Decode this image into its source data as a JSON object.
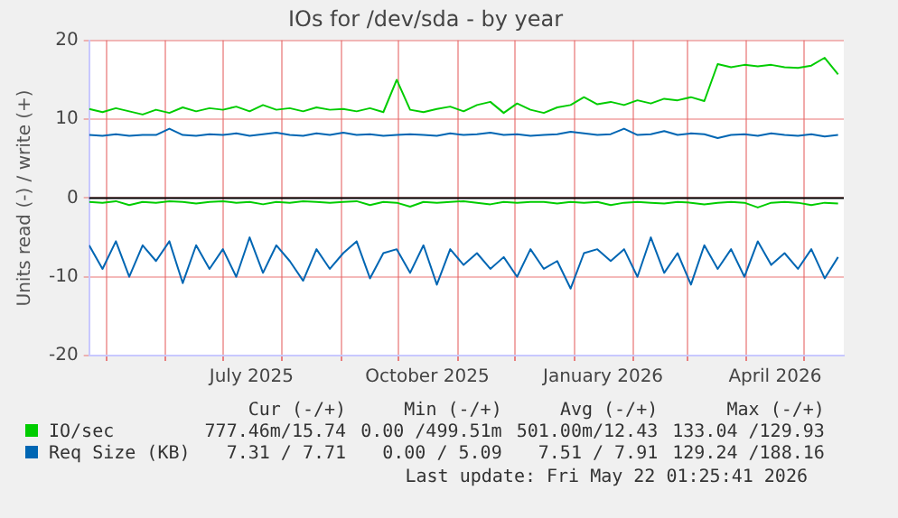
{
  "chart_data": {
    "type": "line",
    "title": "IOs for /dev/sda - by year",
    "ylabel": "Units read (-) / write (+)",
    "x": [
      "2025-04-22",
      "2025-04-29",
      "2025-05-06",
      "2025-05-13",
      "2025-05-20",
      "2025-05-27",
      "2025-06-03",
      "2025-06-10",
      "2025-06-17",
      "2025-06-24",
      "2025-07-01",
      "2025-07-08",
      "2025-07-15",
      "2025-07-22",
      "2025-07-29",
      "2025-08-05",
      "2025-08-12",
      "2025-08-19",
      "2025-08-26",
      "2025-09-02",
      "2025-09-09",
      "2025-09-16",
      "2025-09-23",
      "2025-09-30",
      "2025-10-07",
      "2025-10-14",
      "2025-10-21",
      "2025-10-28",
      "2025-11-04",
      "2025-11-11",
      "2025-11-18",
      "2025-11-25",
      "2025-12-02",
      "2025-12-09",
      "2025-12-16",
      "2025-12-23",
      "2025-12-30",
      "2026-01-06",
      "2026-01-13",
      "2026-01-20",
      "2026-01-27",
      "2026-02-03",
      "2026-02-10",
      "2026-02-17",
      "2026-02-24",
      "2026-03-03",
      "2026-03-10",
      "2026-03-17",
      "2026-03-24",
      "2026-03-31",
      "2026-04-07",
      "2026-04-14",
      "2026-04-21",
      "2026-04-28",
      "2026-05-05",
      "2026-05-12",
      "2026-05-19"
    ],
    "series": [
      {
        "name": "IO/sec",
        "color": "#00cc00",
        "values": [
          11.3,
          10.9,
          11.4,
          11.0,
          10.6,
          11.2,
          10.8,
          11.5,
          11.0,
          11.4,
          11.2,
          11.6,
          11.0,
          11.8,
          11.2,
          11.4,
          11.0,
          11.5,
          11.2,
          11.3,
          11.0,
          11.4,
          10.9,
          15.0,
          11.2,
          10.9,
          11.3,
          11.6,
          11.0,
          11.8,
          12.2,
          10.8,
          12.0,
          11.2,
          10.8,
          11.5,
          11.8,
          12.8,
          11.9,
          12.2,
          11.8,
          12.4,
          12.0,
          12.6,
          12.4,
          12.8,
          12.3,
          17.0,
          16.6,
          16.9,
          16.7,
          16.9,
          16.6,
          16.5,
          16.8,
          17.8,
          15.7
        ]
      },
      {
        "color": "#00cc00",
        "values": [
          -0.5,
          -0.6,
          -0.4,
          -0.9,
          -0.5,
          -0.6,
          -0.4,
          -0.5,
          -0.7,
          -0.5,
          -0.4,
          -0.6,
          -0.5,
          -0.8,
          -0.5,
          -0.6,
          -0.4,
          -0.5,
          -0.6,
          -0.5,
          -0.4,
          -0.9,
          -0.5,
          -0.6,
          -1.1,
          -0.5,
          -0.6,
          -0.5,
          -0.4,
          -0.6,
          -0.8,
          -0.5,
          -0.6,
          -0.5,
          -0.5,
          -0.7,
          -0.5,
          -0.6,
          -0.5,
          -0.9,
          -0.6,
          -0.5,
          -0.6,
          -0.7,
          -0.5,
          -0.6,
          -0.8,
          -0.6,
          -0.5,
          -0.6,
          -1.2,
          -0.6,
          -0.5,
          -0.6,
          -0.9,
          -0.6,
          -0.7
        ]
      },
      {
        "name": "Req Size (KB)",
        "color": "#0066b3",
        "values": [
          8.0,
          7.9,
          8.1,
          7.9,
          8.0,
          8.0,
          8.8,
          8.0,
          7.9,
          8.1,
          8.0,
          8.2,
          7.9,
          8.1,
          8.3,
          8.0,
          7.9,
          8.2,
          8.0,
          8.3,
          8.0,
          8.1,
          7.9,
          8.0,
          8.1,
          8.0,
          7.9,
          8.2,
          8.0,
          8.1,
          8.3,
          8.0,
          8.1,
          7.9,
          8.0,
          8.1,
          8.4,
          8.2,
          8.0,
          8.1,
          8.8,
          8.0,
          8.1,
          8.5,
          8.0,
          8.2,
          8.1,
          7.6,
          8.0,
          8.1,
          7.9,
          8.2,
          8.0,
          7.9,
          8.1,
          7.8,
          8.0
        ]
      },
      {
        "color": "#0066b3",
        "values": [
          -6,
          -9,
          -5.5,
          -10,
          -6,
          -8,
          -5.5,
          -10.8,
          -6,
          -9,
          -6.5,
          -10,
          -5,
          -9.5,
          -6,
          -8,
          -10.5,
          -6.5,
          -9,
          -7,
          -5.5,
          -10.2,
          -7,
          -6.5,
          -9.5,
          -6,
          -11,
          -6.5,
          -8.5,
          -7,
          -9,
          -7.5,
          -10,
          -6.5,
          -9,
          -8,
          -11.5,
          -7,
          -6.5,
          -8,
          -6.5,
          -10,
          -5,
          -9.5,
          -7,
          -11,
          -6,
          -9,
          -6.5,
          -10,
          -5.5,
          -8.5,
          -7,
          -9,
          -6.5,
          -10.2,
          -7.5
        ]
      }
    ],
    "xlim": [
      "2025-04-22",
      "2026-05-22"
    ],
    "xticks": [
      {
        "value": "2025-05-01",
        "label": null
      },
      {
        "value": "2025-06-01",
        "label": null
      },
      {
        "value": "2025-07-01",
        "label": null
      },
      {
        "value": "2025-07-16",
        "label": "July 2025"
      },
      {
        "value": "2025-08-01",
        "label": null
      },
      {
        "value": "2025-09-01",
        "label": null
      },
      {
        "value": "2025-10-01",
        "label": null
      },
      {
        "value": "2025-10-16",
        "label": "October 2025"
      },
      {
        "value": "2025-11-01",
        "label": null
      },
      {
        "value": "2025-12-01",
        "label": null
      },
      {
        "value": "2026-01-01",
        "label": null
      },
      {
        "value": "2026-01-16",
        "label": "January 2026"
      },
      {
        "value": "2026-02-01",
        "label": null
      },
      {
        "value": "2026-03-01",
        "label": null
      },
      {
        "value": "2026-04-01",
        "label": null
      },
      {
        "value": "2026-04-16",
        "label": "April 2026"
      },
      {
        "value": "2026-05-01",
        "label": null
      }
    ],
    "ylim": [
      -20,
      20
    ],
    "yticks": [
      -20,
      -10,
      0,
      10,
      20
    ],
    "grid": true,
    "legend": "bottom left",
    "marker": "none",
    "line_style": "solid",
    "ref_lines": [
      {
        "axis": "y",
        "value": 0,
        "color": "#000000"
      }
    ],
    "annotations": [
      "Cur (-/+)",
      "Min (-/+)",
      "Avg (-/+)",
      "Max (-/+)",
      "777.46m/15.74",
      "0.00 /499.51m",
      "501.00m/12.43",
      "133.04 /129.93",
      "7.31 / 7.71",
      "0.00 / 5.09",
      "7.51 / 7.91",
      "129.24 /188.16",
      "Last update: Fri May 22 01:25:41 2026"
    ]
  }
}
